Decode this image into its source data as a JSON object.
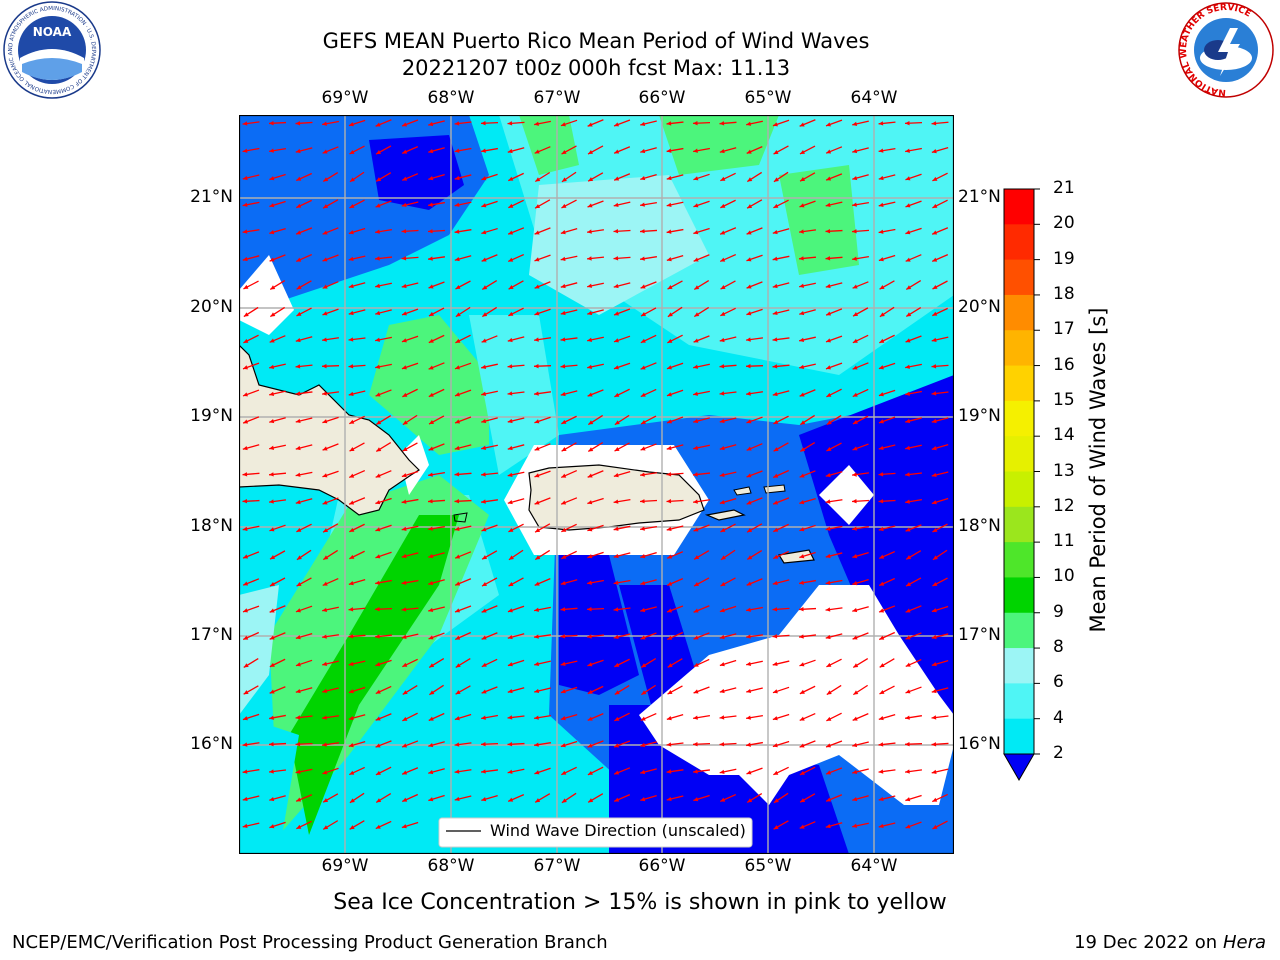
{
  "title_line1": "GEFS MEAN Puerto Rico Mean Period of Wind Waves",
  "title_line2": "20221207 t00z 000h fcst   Max: 11.13",
  "lon_ticks": [
    "69°W",
    "68°W",
    "67°W",
    "66°W",
    "65°W",
    "64°W"
  ],
  "lat_ticks": [
    "21°N",
    "20°N",
    "19°N",
    "18°N",
    "17°N",
    "16°N"
  ],
  "colorbar": {
    "label": "Mean Period of Wind Waves [s]",
    "ticks": [
      "2",
      "4",
      "6",
      "8",
      "9",
      "10",
      "11",
      "12",
      "13",
      "14",
      "15",
      "16",
      "17",
      "18",
      "19",
      "20",
      "21"
    ],
    "colors": [
      "#0000f5",
      "#0b6cf5",
      "#00eaf5",
      "#4ff5f5",
      "#9cf5f5",
      "#4cf57c",
      "#00d400",
      "#4ee62a",
      "#9be61d",
      "#c8f000",
      "#e6f000",
      "#f5f000",
      "#ffd200",
      "#ffb400",
      "#ff8c00",
      "#ff5000",
      "#ff2a00",
      "#ff0000"
    ]
  },
  "legend_label": "Wind Wave Direction (unscaled)",
  "subtitle": "Sea Ice Concentration > 15% is shown in pink to yellow",
  "footer_left": "NCEP/EMC/Verification Post Processing Product Generation Branch",
  "footer_date": "19 Dec 2022 on",
  "footer_host": "Hera",
  "logo_left": {
    "name": "NOAA",
    "ring_text": "NATIONAL OCEANIC AND ATMOSPHERIC ADMINISTRATION · U.S. DEPARTMENT OF COMMERCE"
  },
  "logo_right": {
    "ring_text": "NATIONAL WEATHER SERVICE"
  },
  "colors": {
    "land": "#efecdc",
    "arrow": "#ff0000",
    "grid": "#b0b0b0"
  }
}
